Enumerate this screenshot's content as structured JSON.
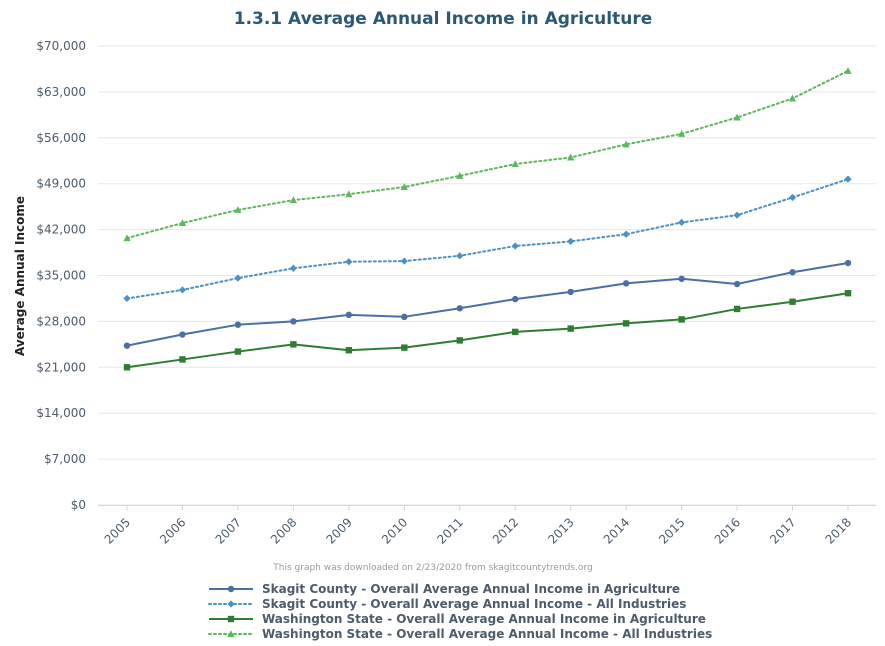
{
  "chart_data": {
    "type": "line",
    "title": "1.3.1 Average Annual Income in Agriculture",
    "ylabel": "Average Annual Income",
    "xlabel": "",
    "credits": "This graph was downloaded on 2/23/2020 from skagitcountytrends.org",
    "categories": [
      "2005",
      "2006",
      "2007",
      "2008",
      "2009",
      "2010",
      "2011",
      "2012",
      "2013",
      "2014",
      "2015",
      "2016",
      "2017",
      "2018"
    ],
    "ylim": [
      0,
      70000
    ],
    "yticks": [
      0,
      7000,
      14000,
      21000,
      28000,
      35000,
      42000,
      49000,
      56000,
      63000,
      70000
    ],
    "ytick_labels": [
      "$0",
      "$7,000",
      "$14,000",
      "$21,000",
      "$28,000",
      "$35,000",
      "$42,000",
      "$49,000",
      "$56,000",
      "$63,000",
      "$70,000"
    ],
    "grid": true,
    "legend_position": "bottom",
    "series": [
      {
        "name": "Skagit County - Overall Average Annual Income in Agriculture",
        "color": "#4a6fa5",
        "line_style": "solid",
        "marker": "circle",
        "values": [
          24300,
          26000,
          27500,
          28000,
          29000,
          28700,
          30000,
          31400,
          32500,
          33800,
          34500,
          33700,
          35500,
          36900
        ]
      },
      {
        "name": "Skagit County - Overall Average Annual Income - All Industries",
        "color": "#4a90c8",
        "line_style": "dotted",
        "marker": "diamond",
        "values": [
          31500,
          32800,
          34600,
          36100,
          37100,
          37200,
          38000,
          39500,
          40200,
          41300,
          43100,
          44200,
          46900,
          49700
        ]
      },
      {
        "name": "Washington State - Overall Average Annual Income in Agriculture",
        "color": "#2e7d32",
        "line_style": "solid",
        "marker": "square",
        "values": [
          21000,
          22200,
          23400,
          24500,
          23600,
          24000,
          25100,
          26400,
          26900,
          27700,
          28300,
          29900,
          31000,
          32300
        ]
      },
      {
        "name": "Washington State - Overall Average Annual Income - All Industries",
        "color": "#5cb85c",
        "line_style": "dotted",
        "marker": "triangle",
        "values": [
          40700,
          43000,
          45000,
          46500,
          47400,
          48500,
          50200,
          52000,
          53000,
          55000,
          56600,
          59100,
          62000,
          66200
        ]
      }
    ]
  }
}
